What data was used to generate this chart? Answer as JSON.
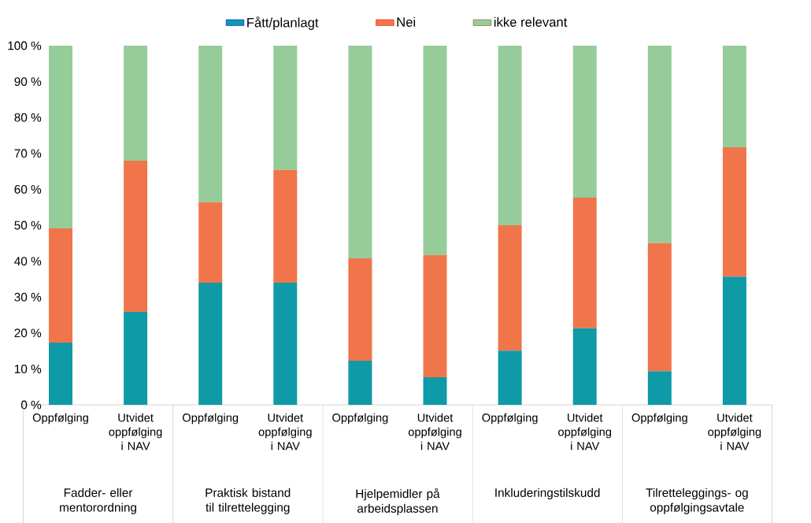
{
  "chart_data": {
    "type": "bar",
    "stacked": true,
    "categories": [
      "Oppfølging",
      "Utvidet oppfølging i NAV",
      "Oppfølging",
      "Utvidet oppfølging i NAV",
      "Oppfølging",
      "Utvidet oppfølging i NAV",
      "Oppfølging",
      "Utvidet oppfølging i NAV",
      "Oppfølging",
      "Utvidet oppfølging i NAV"
    ],
    "series": [
      {
        "name": "Fått/planlagt",
        "color": "#0e9aa7",
        "values": [
          17.3,
          25.9,
          34.0,
          34.0,
          12.3,
          7.7,
          15.1,
          21.3,
          9.4,
          35.7
        ]
      },
      {
        "name": "Nei",
        "color": "#f0754a",
        "values": [
          31.8,
          42.1,
          22.4,
          31.4,
          28.5,
          34.0,
          34.9,
          36.4,
          35.6,
          36.0
        ]
      },
      {
        "name": "ikke relevant",
        "color": "#95cc99",
        "values": [
          50.9,
          32.0,
          43.6,
          34.6,
          59.2,
          58.3,
          50.0,
          42.3,
          55.0,
          28.3
        ]
      }
    ],
    "ylim": [
      0,
      100
    ],
    "yticks": [
      {
        "value": 0,
        "label": "0 %"
      },
      {
        "value": 10,
        "label": "10 %"
      },
      {
        "value": 20,
        "label": "20 %"
      },
      {
        "value": 30,
        "label": "30 %"
      },
      {
        "value": 40,
        "label": "40 %"
      },
      {
        "value": 50,
        "label": "50 %"
      },
      {
        "value": 60,
        "label": "60 %"
      },
      {
        "value": 70,
        "label": "70 %"
      },
      {
        "value": 80,
        "label": "80 %"
      },
      {
        "value": 90,
        "label": "90 %"
      },
      {
        "value": 100,
        "label": "100 %"
      }
    ],
    "annotations": [
      "Fadder- eller mentorordning",
      "Praktisk bistand til tilrettelegging",
      "Hjelpemidler på arbeidsplassen",
      "Inkluderingstilskudd",
      "Tilretteleggings- og oppfølgingsavtale"
    ],
    "legend": "top",
    "grid": false
  }
}
